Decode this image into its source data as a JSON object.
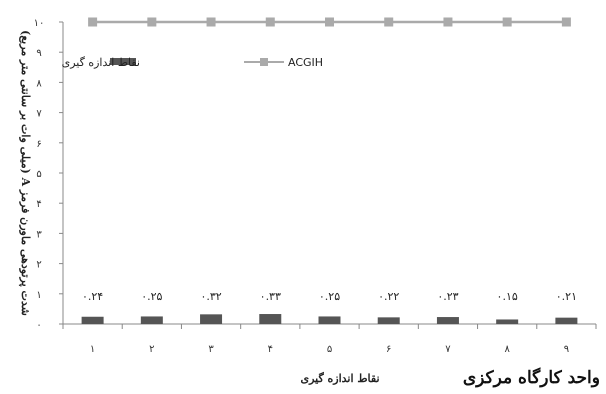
{
  "caption": "واحد کارگاه مرکزی",
  "chart_data": {
    "type": "bar",
    "categories": [
      "۱",
      "۲",
      "۳",
      "۴",
      "۵",
      "۶",
      "۷",
      "۸",
      "۹"
    ],
    "series": [
      {
        "name": "نقاط اندازه گیری",
        "kind": "bar",
        "values": [
          0.24,
          0.25,
          0.32,
          0.33,
          0.25,
          0.22,
          0.23,
          0.15,
          0.21
        ],
        "data_labels": [
          "۰.۲۴",
          "۰.۲۵",
          "۰.۳۲",
          "۰.۳۳",
          "۰.۲۵",
          "۰.۲۲",
          "۰.۲۳",
          "۰.۱۵",
          "۰.۲۱"
        ],
        "color": "#555555"
      },
      {
        "name": "ACGIH",
        "kind": "line",
        "values": [
          10,
          10,
          10,
          10,
          10,
          10,
          10,
          10,
          10
        ],
        "color": "#aaaaaa"
      }
    ],
    "xlabel": "نقاط اندازه گیری",
    "ylabel": "شدت پرتودهی ماورن فرمز A (میلی وات بر سانتی متر مربع)",
    "ylim": [
      0,
      10
    ],
    "yticks": [
      "۰",
      "۱",
      "۲",
      "۳",
      "۴",
      "۵",
      "۶",
      "۷",
      "۸",
      "۹",
      "۱۰"
    ],
    "legend": "top-left",
    "grid": false
  }
}
